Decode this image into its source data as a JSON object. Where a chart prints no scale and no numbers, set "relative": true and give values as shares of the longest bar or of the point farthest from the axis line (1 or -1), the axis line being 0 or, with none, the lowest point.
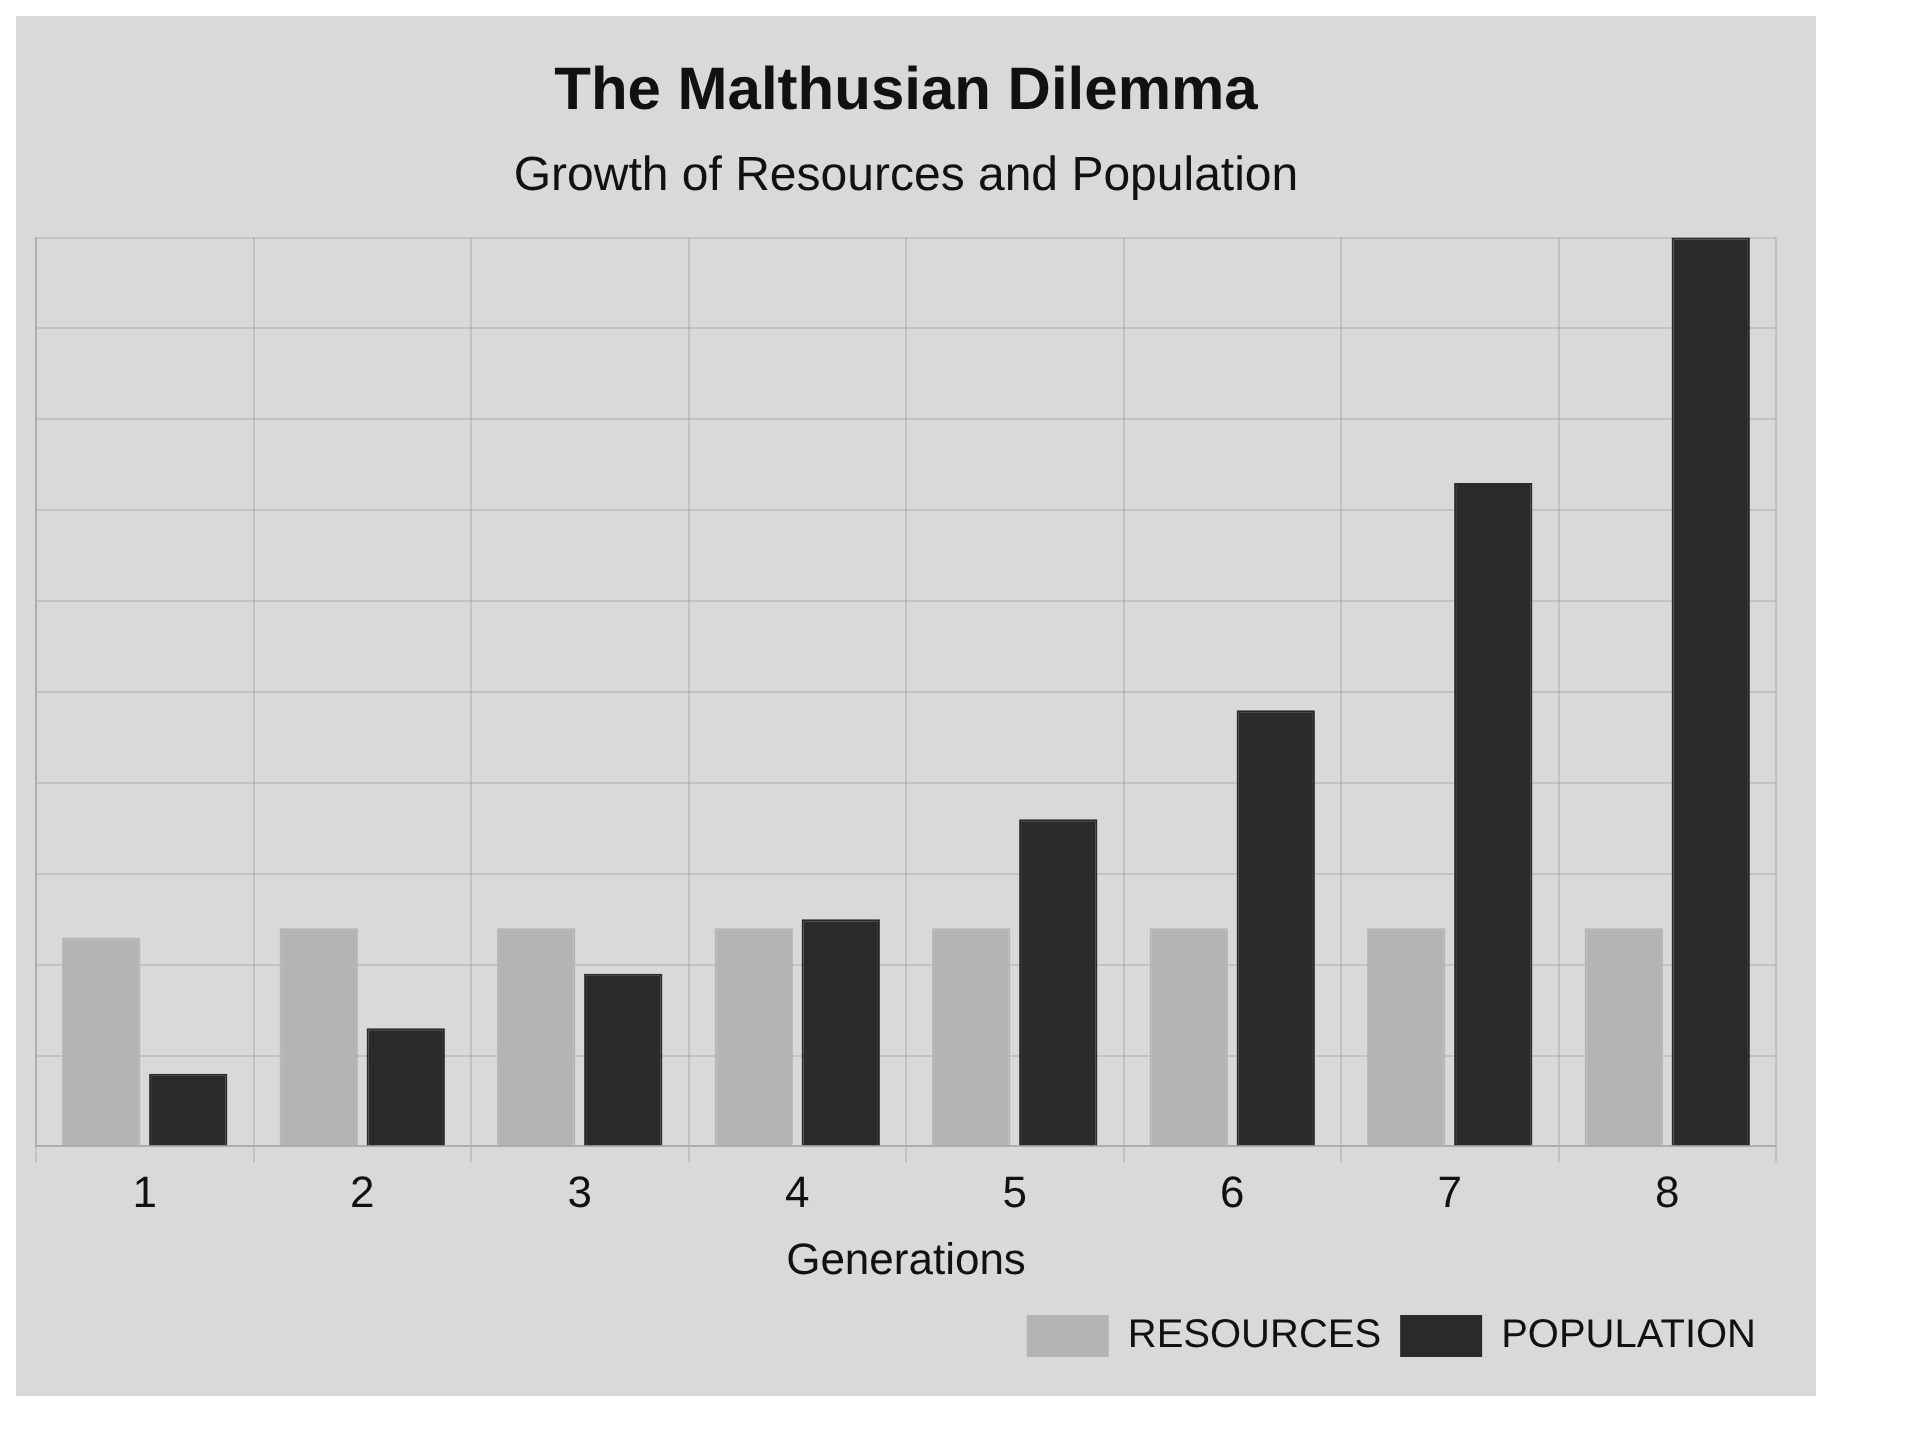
{
  "chart_data": {
    "type": "bar",
    "title": "The Malthusian Dilemma",
    "subtitle": "Growth of Resources and Population",
    "xlabel": "Generations",
    "categories": [
      "1",
      "2",
      "3",
      "4",
      "5",
      "6",
      "7",
      "8"
    ],
    "relative": true,
    "legend": "bottom right",
    "grid": true,
    "series": [
      {
        "name": "RESOURCES",
        "color": "#b4b4b4",
        "values": [
          0.23,
          0.24,
          0.24,
          0.24,
          0.24,
          0.24,
          0.24,
          0.24
        ]
      },
      {
        "name": "POPULATION",
        "color": "#2a2a2a",
        "values": [
          0.08,
          0.13,
          0.19,
          0.25,
          0.36,
          0.48,
          0.73,
          1
        ]
      }
    ]
  }
}
